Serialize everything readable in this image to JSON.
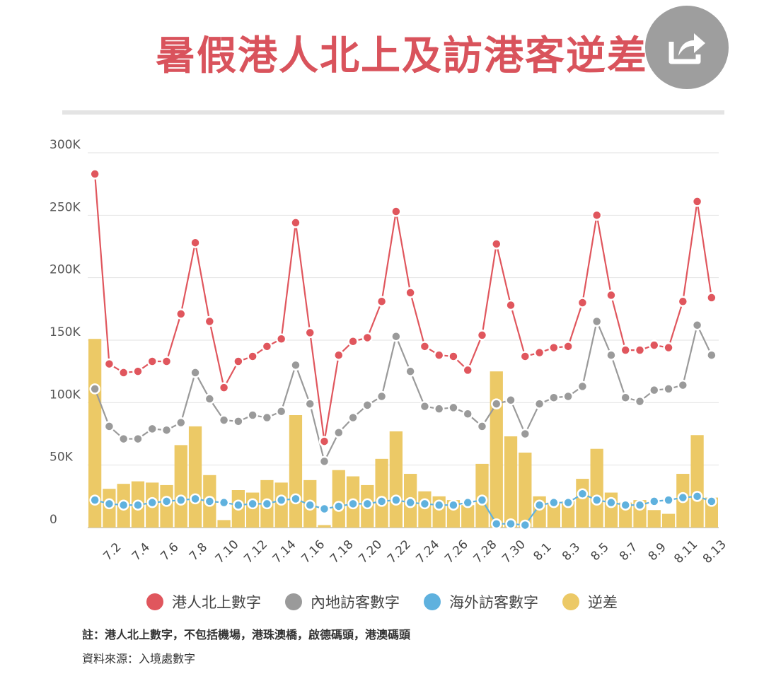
{
  "title": "暑假港人北上及訪港客逆差",
  "share_icon": "share-icon",
  "notes": {
    "line1": "註：港人北上數字，不包括機場，港珠澳橋，啟德碼頭，港澳碼頭",
    "line2": "資料來源：入境處數字"
  },
  "legend": [
    {
      "label": "港人北上數字",
      "color": "#e0565d"
    },
    {
      "label": "內地訪客數字",
      "color": "#9a9a9a"
    },
    {
      "label": "海外訪客數字",
      "color": "#5fb1de"
    },
    {
      "label": "逆差",
      "color": "#ecc966"
    }
  ],
  "chart_data": {
    "type": "line",
    "x": [
      "7.1",
      "7.2",
      "7.3",
      "7.4",
      "7.5",
      "7.6",
      "7.7",
      "7.8",
      "7.9",
      "7.10",
      "7.11",
      "7.12",
      "7.13",
      "7.14",
      "7.15",
      "7.16",
      "7.17",
      "7.18",
      "7.19",
      "7.20",
      "7.21",
      "7.22",
      "7.23",
      "7.24",
      "7.25",
      "7.26",
      "7.27",
      "7.28",
      "7.29",
      "7.30",
      "7.31",
      "8.1",
      "8.2",
      "8.3",
      "8.4",
      "8.5",
      "8.6",
      "8.7",
      "8.8",
      "8.9",
      "8.10",
      "8.11",
      "8.12",
      "8.13"
    ],
    "x_tick_labels": [
      "7.2",
      "7.4",
      "7.6",
      "7.8",
      "7.10",
      "7.12",
      "7.14",
      "7.16",
      "7.18",
      "7.20",
      "7.22",
      "7.24",
      "7.26",
      "7.28",
      "7.30",
      "8.1",
      "8.3",
      "8.5",
      "8.7",
      "8.9",
      "8.11",
      "8.13"
    ],
    "y_tick_labels": [
      "0",
      "50K",
      "100K",
      "150K",
      "200K",
      "250K",
      "300K"
    ],
    "ylim": [
      0,
      300000
    ],
    "grid": true,
    "legend_position": "bottom",
    "series": [
      {
        "name": "港人北上數字",
        "type": "line",
        "color": "#e0565d",
        "values": [
          283000,
          131000,
          124000,
          125000,
          133000,
          133000,
          171000,
          228000,
          165000,
          112000,
          133000,
          137000,
          145000,
          151000,
          244000,
          156000,
          69000,
          138000,
          149000,
          152000,
          181000,
          253000,
          188000,
          145000,
          138000,
          137000,
          126000,
          154000,
          227000,
          178000,
          137000,
          140000,
          144000,
          145000,
          180000,
          250000,
          186000,
          142000,
          142000,
          146000,
          144000,
          181000,
          261000,
          184000
        ]
      },
      {
        "name": "內地訪客數字",
        "type": "line",
        "color": "#9a9a9a",
        "values": [
          111000,
          81000,
          71000,
          71000,
          79000,
          78000,
          84000,
          124000,
          103000,
          86000,
          85000,
          90000,
          88000,
          93000,
          130000,
          99000,
          53000,
          76000,
          88000,
          98000,
          105000,
          153000,
          125000,
          97000,
          95000,
          96000,
          91000,
          81000,
          99000,
          102000,
          75000,
          99000,
          104000,
          105000,
          113000,
          165000,
          138000,
          104000,
          101000,
          110000,
          111000,
          114000,
          162000,
          138000
        ]
      },
      {
        "name": "海外訪客數字",
        "type": "line",
        "color": "#5fb1de",
        "values": [
          22000,
          19000,
          18000,
          18000,
          20000,
          21000,
          22000,
          23000,
          21000,
          20000,
          18000,
          19000,
          19000,
          22000,
          23000,
          18000,
          15000,
          17000,
          19000,
          19000,
          21000,
          22000,
          20000,
          19000,
          18000,
          18000,
          20000,
          22000,
          3000,
          3000,
          2000,
          18000,
          20000,
          20000,
          27000,
          22000,
          20000,
          18000,
          18000,
          21000,
          22000,
          24000,
          25000,
          21000
        ]
      },
      {
        "name": "逆差",
        "type": "bar",
        "color": "#ecc966",
        "values": [
          151000,
          31000,
          35000,
          37000,
          36000,
          34000,
          66000,
          81000,
          42000,
          6000,
          30000,
          28000,
          38000,
          36000,
          90000,
          38000,
          2000,
          46000,
          41000,
          34000,
          55000,
          77000,
          43000,
          29000,
          25000,
          22000,
          18000,
          51000,
          125000,
          73000,
          60000,
          25000,
          20000,
          21000,
          39000,
          63000,
          28000,
          20000,
          22000,
          14000,
          11000,
          43000,
          74000,
          24000
        ]
      }
    ]
  }
}
